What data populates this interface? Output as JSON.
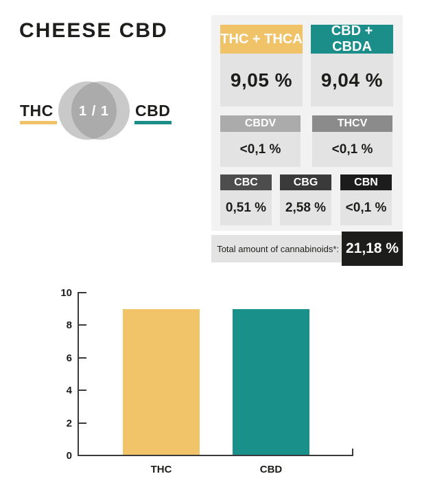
{
  "page": {
    "title": "CHEESE CBD"
  },
  "ratio": {
    "left": "THC",
    "right": "CBD",
    "value": "1 / 1"
  },
  "colors": {
    "accent_gold": "#f1c368",
    "accent_teal": "#1b8e8a",
    "ink": "#1d1d1b",
    "panel_bg": "#f2f2f2",
    "cell_bg": "#e3e3e3",
    "venn_light": "#c9c9c9",
    "venn_overlap": "#ababab",
    "axis": "#3a3a3a"
  },
  "panel": {
    "rows": [
      {
        "cells": [
          {
            "label": "THC + THCA",
            "value": "9,05 %",
            "header_bg": "#f1c368"
          },
          {
            "label": "CBD + CBDA",
            "value": "9,04 %",
            "header_bg": "#1b8e8a"
          }
        ]
      },
      {
        "cells": [
          {
            "label": "CBDV",
            "value": "<0,1 %",
            "header_bg": "#ababab"
          },
          {
            "label": "THCV",
            "value": "<0,1 %",
            "header_bg": "#8b8b8b"
          }
        ]
      },
      {
        "cells": [
          {
            "label": "CBC",
            "value": "0,51 %",
            "header_bg": "#4d4d4d"
          },
          {
            "label": "CBG",
            "value": "2,58 %",
            "header_bg": "#3a3a3a"
          },
          {
            "label": "CBN",
            "value": "<0,1 %",
            "header_bg": "#1c1c1c"
          }
        ]
      }
    ],
    "total_label": "Total amount of cannabinoids*:",
    "total_value": "21,18 %"
  },
  "chart_data": {
    "type": "bar",
    "categories": [
      "THC",
      "CBD"
    ],
    "values": [
      9.05,
      9.04
    ],
    "bar_colors": [
      "#f2c469",
      "#199089"
    ],
    "title": "",
    "xlabel": "",
    "ylabel": "",
    "ylim": [
      0,
      10
    ],
    "yticks": [
      0,
      2,
      4,
      6,
      8,
      10
    ],
    "ytick_labels": [
      "0",
      "2",
      "4",
      "6",
      "8",
      "10"
    ],
    "grid": false,
    "legend": false
  }
}
